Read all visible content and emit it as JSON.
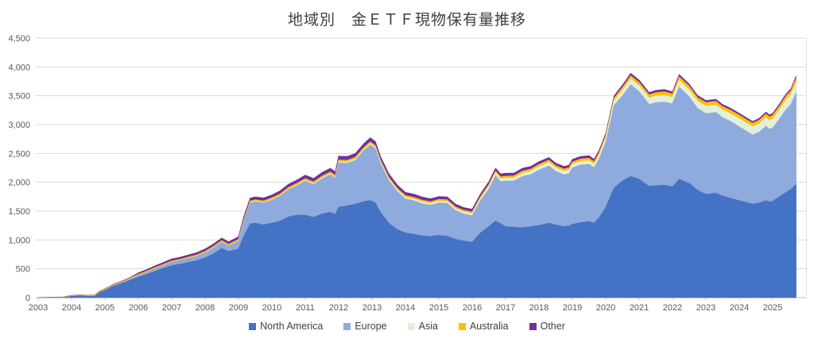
{
  "chart_data": {
    "type": "area",
    "stacked": true,
    "title": "地域別　金ＥＴＦ現物保有量推移",
    "xlabel": "",
    "ylabel": "",
    "ylim": [
      0,
      4500
    ],
    "y_tick_step": 500,
    "y_ticks": [
      "0",
      "500",
      "1,000",
      "1,500",
      "2,000",
      "2,500",
      "3,000",
      "3,500",
      "4,000",
      "4,500"
    ],
    "x_tick_labels": [
      "2003",
      "2004",
      "2005",
      "2006",
      "2007",
      "2008",
      "2009",
      "2010",
      "2011",
      "2012",
      "2013",
      "2014",
      "2015",
      "2016",
      "2017",
      "2018",
      "2019",
      "2020",
      "2021",
      "2022",
      "2023",
      "2024",
      "2025"
    ],
    "grid": "horizontal",
    "legend_position": "bottom",
    "x": [
      2003.0,
      2003.25,
      2003.5,
      2003.75,
      2004.0,
      2004.25,
      2004.5,
      2004.7,
      2004.85,
      2005.0,
      2005.25,
      2005.5,
      2005.75,
      2006.0,
      2006.25,
      2006.5,
      2006.75,
      2007.0,
      2007.25,
      2007.5,
      2007.75,
      2008.0,
      2008.25,
      2008.5,
      2008.7,
      2009.0,
      2009.15,
      2009.35,
      2009.5,
      2009.75,
      2010.0,
      2010.25,
      2010.5,
      2010.75,
      2011.0,
      2011.25,
      2011.5,
      2011.75,
      2011.9,
      2012.0,
      2012.25,
      2012.5,
      2012.75,
      2012.95,
      2013.1,
      2013.25,
      2013.5,
      2013.75,
      2014.0,
      2014.25,
      2014.5,
      2014.75,
      2015.0,
      2015.25,
      2015.5,
      2015.75,
      2016.0,
      2016.25,
      2016.5,
      2016.7,
      2016.85,
      2017.0,
      2017.25,
      2017.5,
      2017.75,
      2018.0,
      2018.3,
      2018.5,
      2018.75,
      2018.9,
      2019.0,
      2019.25,
      2019.5,
      2019.65,
      2019.8,
      2020.0,
      2020.25,
      2020.5,
      2020.75,
      2021.0,
      2021.3,
      2021.5,
      2021.75,
      2022.0,
      2022.2,
      2022.5,
      2022.75,
      2023.0,
      2023.3,
      2023.5,
      2023.75,
      2024.0,
      2024.4,
      2024.6,
      2024.8,
      2024.9,
      2025.0,
      2025.2,
      2025.4,
      2025.55,
      2025.7
    ],
    "series": [
      {
        "name": "North America",
        "color": "#4472C4",
        "values": [
          0,
          0,
          0,
          0,
          22,
          32,
          24,
          26,
          95,
          125,
          200,
          245,
          300,
          355,
          400,
          455,
          505,
          555,
          580,
          610,
          640,
          690,
          760,
          850,
          800,
          840,
          1050,
          1280,
          1290,
          1260,
          1290,
          1330,
          1400,
          1430,
          1430,
          1390,
          1450,
          1480,
          1440,
          1565,
          1590,
          1620,
          1665,
          1685,
          1640,
          1480,
          1290,
          1180,
          1120,
          1100,
          1070,
          1060,
          1080,
          1065,
          1010,
          980,
          960,
          1120,
          1230,
          1330,
          1280,
          1230,
          1220,
          1210,
          1230,
          1250,
          1290,
          1260,
          1230,
          1240,
          1270,
          1300,
          1320,
          1290,
          1380,
          1560,
          1900,
          2020,
          2100,
          2050,
          1930,
          1940,
          1950,
          1920,
          2050,
          1980,
          1860,
          1790,
          1810,
          1760,
          1720,
          1680,
          1620,
          1640,
          1680,
          1660,
          1670,
          1750,
          1820,
          1880,
          1960
        ]
      },
      {
        "name": "Europe",
        "color": "#8FAADC",
        "values": [
          0,
          0,
          0,
          0,
          0,
          0,
          0,
          0,
          0,
          5,
          8,
          12,
          18,
          30,
          38,
          45,
          50,
          58,
          62,
          68,
          75,
          85,
          100,
          110,
          95,
          140,
          260,
          360,
          370,
          380,
          400,
          430,
          470,
          510,
          590,
          570,
          610,
          650,
          630,
          770,
          740,
          760,
          880,
          960,
          940,
          850,
          740,
          660,
          590,
          580,
          560,
          540,
          560,
          570,
          500,
          470,
          460,
          560,
          650,
          780,
          730,
          790,
          800,
          890,
          900,
          960,
          990,
          930,
          900,
          910,
          980,
          1000,
          990,
          960,
          1020,
          1130,
          1430,
          1480,
          1590,
          1520,
          1420,
          1440,
          1440,
          1440,
          1600,
          1500,
          1420,
          1400,
          1400,
          1360,
          1330,
          1280,
          1200,
          1230,
          1290,
          1260,
          1270,
          1340,
          1440,
          1470,
          1590
        ]
      },
      {
        "name": "Asia",
        "color": "#E2EFDA",
        "values": [
          0,
          0,
          0,
          0,
          0,
          0,
          0,
          0,
          0,
          0,
          0,
          0,
          0,
          0,
          0,
          0,
          0,
          0,
          1,
          2,
          3,
          3,
          4,
          4,
          4,
          5,
          6,
          8,
          8,
          9,
          10,
          10,
          11,
          12,
          13,
          14,
          15,
          16,
          16,
          18,
          18,
          19,
          20,
          22,
          23,
          24,
          25,
          27,
          28,
          29,
          30,
          31,
          32,
          32,
          33,
          34,
          35,
          40,
          45,
          48,
          49,
          50,
          52,
          55,
          58,
          60,
          62,
          58,
          58,
          59,
          60,
          61,
          62,
          62,
          65,
          70,
          80,
          90,
          100,
          105,
          110,
          115,
          118,
          110,
          115,
          120,
          125,
          130,
          130,
          130,
          135,
          140,
          140,
          145,
          150,
          150,
          155,
          160,
          165,
          170,
          180
        ]
      },
      {
        "name": "Australia",
        "color": "#FFC000",
        "values": [
          2,
          4,
          6,
          8,
          12,
          13,
          14,
          15,
          15,
          16,
          16,
          17,
          18,
          20,
          20,
          21,
          21,
          22,
          22,
          23,
          23,
          24,
          24,
          25,
          24,
          25,
          26,
          27,
          27,
          28,
          28,
          29,
          30,
          30,
          31,
          31,
          32,
          32,
          32,
          33,
          33,
          33,
          34,
          34,
          34,
          33,
          33,
          32,
          32,
          31,
          31,
          30,
          30,
          30,
          30,
          30,
          30,
          32,
          34,
          35,
          35,
          36,
          37,
          38,
          39,
          40,
          41,
          41,
          41,
          42,
          42,
          43,
          44,
          44,
          45,
          46,
          48,
          52,
          55,
          55,
          56,
          58,
          60,
          62,
          64,
          64,
          62,
          62,
          62,
          62,
          62,
          62,
          62,
          62,
          64,
          64,
          64,
          66,
          68,
          68,
          70
        ]
      },
      {
        "name": "Other",
        "color": "#7030A0",
        "values": [
          0,
          1,
          2,
          3,
          5,
          5,
          5,
          6,
          6,
          8,
          9,
          10,
          12,
          25,
          28,
          30,
          32,
          35,
          36,
          38,
          38,
          40,
          42,
          44,
          42,
          45,
          48,
          50,
          50,
          52,
          52,
          54,
          56,
          58,
          60,
          60,
          62,
          64,
          62,
          66,
          66,
          66,
          68,
          70,
          68,
          64,
          62,
          58,
          55,
          54,
          52,
          52,
          50,
          49,
          48,
          47,
          46,
          48,
          50,
          52,
          50,
          50,
          49,
          48,
          47,
          46,
          46,
          44,
          44,
          44,
          44,
          44,
          44,
          43,
          42,
          40,
          40,
          42,
          44,
          42,
          40,
          40,
          40,
          38,
          40,
          38,
          36,
          36,
          36,
          36,
          34,
          34,
          32,
          32,
          34,
          34,
          34,
          36,
          36,
          36,
          38
        ]
      }
    ]
  },
  "axis_colors": {
    "gridline": "#D9D9D9",
    "axis_line": "#BFBFBF",
    "tick_label": "#595959",
    "right_border": "#E2E2E2"
  }
}
